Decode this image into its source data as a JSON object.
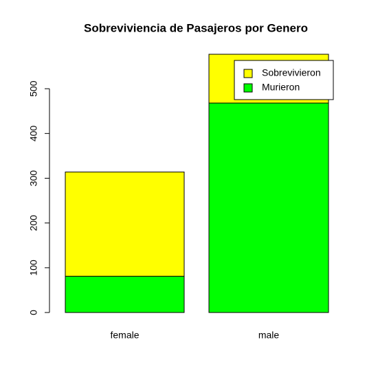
{
  "chart_data": {
    "type": "stacked-bar",
    "title": "Sobreviviencia de Pasajeros por Genero",
    "categories": [
      "female",
      "male"
    ],
    "series": [
      {
        "name": "Murieron",
        "color": "#00ff00",
        "values": [
          81,
          468
        ]
      },
      {
        "name": "Sobrevivieron",
        "color": "#ffff00",
        "values": [
          233,
          109
        ]
      }
    ],
    "legend_order": [
      "Sobrevivieron",
      "Murieron"
    ],
    "legend": "top-right",
    "ylim": [
      0,
      577
    ],
    "yticks": [
      0,
      100,
      200,
      300,
      400,
      500
    ]
  }
}
